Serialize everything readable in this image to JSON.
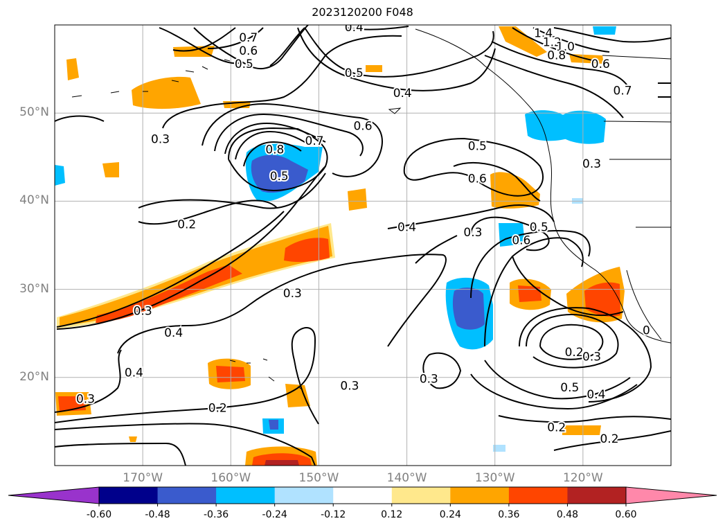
{
  "title": "2023120200 F048",
  "map": {
    "lat_range": [
      10,
      60
    ],
    "lon_range": [
      -180,
      -110
    ],
    "lat_ticks": [
      {
        "value": 50,
        "label": "50°N"
      },
      {
        "value": 40,
        "label": "40°N"
      },
      {
        "value": 30,
        "label": "30°N"
      },
      {
        "value": 20,
        "label": "20°N"
      }
    ],
    "lon_ticks": [
      {
        "value": -170,
        "label": "170°W"
      },
      {
        "value": -160,
        "label": "160°W"
      },
      {
        "value": -150,
        "label": "150°W"
      },
      {
        "value": -140,
        "label": "140°W"
      },
      {
        "value": -130,
        "label": "130°W"
      },
      {
        "value": -120,
        "label": "120°W"
      }
    ],
    "grid": true,
    "contour_labels": [
      {
        "text": "0.7",
        "lon": -158,
        "lat": 58.5
      },
      {
        "text": "0.6",
        "lon": -158,
        "lat": 57
      },
      {
        "text": "0.5",
        "lon": -158.5,
        "lat": 55.5
      },
      {
        "text": "0.4",
        "lon": -146,
        "lat": 59.7
      },
      {
        "text": "0.5",
        "lon": -146,
        "lat": 54.5
      },
      {
        "text": "0.4",
        "lon": -140.5,
        "lat": 52.2
      },
      {
        "text": "1.4",
        "lon": -124.5,
        "lat": 59
      },
      {
        "text": "1.2",
        "lon": -123.5,
        "lat": 58
      },
      {
        "text": "1.0",
        "lon": -122,
        "lat": 57.5
      },
      {
        "text": "0.8",
        "lon": -123,
        "lat": 56.5
      },
      {
        "text": "0.6",
        "lon": -118,
        "lat": 55.5
      },
      {
        "text": "0.7",
        "lon": -115.5,
        "lat": 52.5
      },
      {
        "text": "0.3",
        "lon": -168,
        "lat": 47
      },
      {
        "text": "0.6",
        "lon": -145,
        "lat": 48.5
      },
      {
        "text": "0.7",
        "lon": -150.5,
        "lat": 46.8
      },
      {
        "text": "0.8",
        "lon": -155,
        "lat": 45.8
      },
      {
        "text": "0.5",
        "lon": -154.5,
        "lat": 42.8
      },
      {
        "text": "0.5",
        "lon": -132,
        "lat": 46.2
      },
      {
        "text": "0.6",
        "lon": -132,
        "lat": 42.5
      },
      {
        "text": "0.3",
        "lon": -119,
        "lat": 44.2
      },
      {
        "text": "0.2",
        "lon": -165,
        "lat": 37.3
      },
      {
        "text": "0.4",
        "lon": -140,
        "lat": 37
      },
      {
        "text": "0.3",
        "lon": -132.5,
        "lat": 36.4
      },
      {
        "text": "0.5",
        "lon": -125,
        "lat": 37
      },
      {
        "text": "0.6",
        "lon": -127,
        "lat": 35.5
      },
      {
        "text": "0.3",
        "lon": -153,
        "lat": 29.5
      },
      {
        "text": "0.3",
        "lon": -170,
        "lat": 27.5
      },
      {
        "text": "0.4",
        "lon": -166.5,
        "lat": 25
      },
      {
        "text": "0.4",
        "lon": -171,
        "lat": 20.5
      },
      {
        "text": "0.3",
        "lon": -146.5,
        "lat": 19
      },
      {
        "text": "0.3",
        "lon": -137.5,
        "lat": 19.8
      },
      {
        "text": "0.2",
        "lon": -161.5,
        "lat": 16.5
      },
      {
        "text": "0.3",
        "lon": -176.5,
        "lat": 17.5
      },
      {
        "text": "0.2",
        "lon": -121,
        "lat": 22.8
      },
      {
        "text": "0.3",
        "lon": -119,
        "lat": 22.3
      },
      {
        "text": "0.5",
        "lon": -121.5,
        "lat": 18.8
      },
      {
        "text": "0.4",
        "lon": -118.5,
        "lat": 18
      },
      {
        "text": "0.2",
        "lon": -123,
        "lat": 14.3
      },
      {
        "text": "0.2",
        "lon": -117,
        "lat": 13
      },
      {
        "text": "0",
        "lon": -112.8,
        "lat": 25.3
      }
    ]
  },
  "colorbar": {
    "ticks": [
      "-0.60",
      "-0.48",
      "-0.36",
      "-0.24",
      "-0.12",
      "0.12",
      "0.24",
      "0.36",
      "0.48",
      "0.60"
    ],
    "colors": [
      "#9933cc",
      "#00008b",
      "#3a5bcd",
      "#00bfff",
      "#b0e2ff",
      "#ffffff",
      "#ffe88c",
      "#ffa500",
      "#ff4500",
      "#b22222",
      "#ff88aa"
    ]
  }
}
